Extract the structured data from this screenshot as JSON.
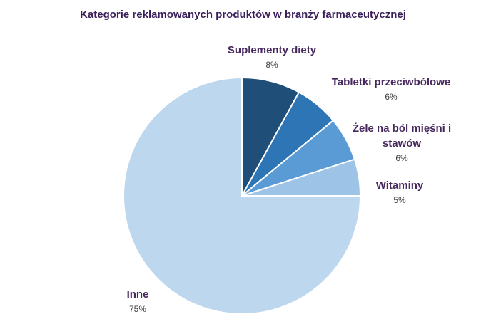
{
  "chart_data": {
    "type": "pie",
    "title": "Kategorie reklamowanych produktów w branży farmaceutycznej",
    "categories": [
      "Suplementy diety",
      "Tabletki przeciwbólowe",
      "Żele na ból mięśni i stawów",
      "Witaminy",
      "Inne"
    ],
    "values": [
      8,
      6,
      6,
      5,
      75
    ],
    "value_labels": [
      "8%",
      "6%",
      "6%",
      "5%",
      "75%"
    ],
    "colors": [
      "#1f4e79",
      "#2e75b6",
      "#5b9bd5",
      "#9dc3e6",
      "#bdd7ee"
    ]
  }
}
